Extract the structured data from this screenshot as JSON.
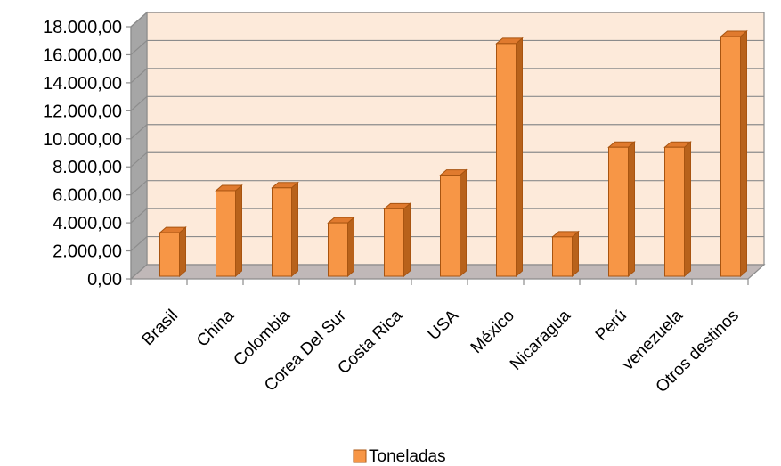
{
  "chart_data": {
    "type": "bar",
    "categories": [
      "Brasil",
      "China",
      "Colombia",
      "Corea Del Sur",
      "Costa Rica",
      "USA",
      "México",
      "Nicaragua",
      "Perú",
      "venezuela",
      "Otros destinos"
    ],
    "series": [
      {
        "name": "Toneladas",
        "values": [
          3300,
          6300,
          6500,
          4000,
          5000,
          7400,
          16800,
          3000,
          9400,
          9400,
          17300
        ]
      }
    ],
    "y_ticks": [
      "0,00",
      "2.000,00",
      "4.000,00",
      "6.000,00",
      "8.000,00",
      "10.000,00",
      "12.000,00",
      "14.000,00",
      "16.000,00",
      "18.000,00"
    ],
    "ylim": [
      0,
      18000
    ],
    "title": "",
    "xlabel": "",
    "ylabel": "",
    "grid": true,
    "legend_position": "bottom",
    "style": "3d",
    "colors": {
      "bar_front": "#F79646",
      "bar_side": "#B8621B",
      "bar_top": "#E07A2E",
      "bar_stroke": "#A85410",
      "wall": "#FDEADA",
      "floor": "#C0B8B8",
      "left_wall": "#A6A6A6",
      "grid": "#8C8C8C",
      "text": "#000000"
    }
  }
}
